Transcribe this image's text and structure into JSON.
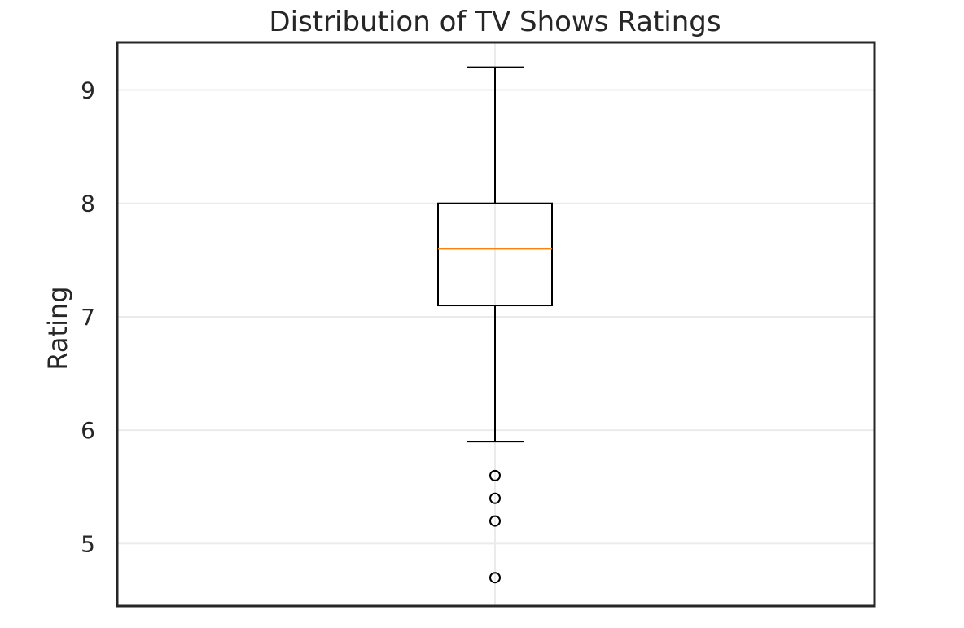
{
  "chart_data": {
    "type": "box",
    "title": "Distribution of TV Shows Ratings",
    "xlabel": "",
    "ylabel": "Rating",
    "ylim": [
      4.45,
      9.42
    ],
    "yticks": [
      5,
      6,
      7,
      8,
      9
    ],
    "ytick_labels": [
      "5",
      "6",
      "7",
      "8",
      "9"
    ],
    "grid": true,
    "box": {
      "whisker_low": 5.9,
      "q1": 7.1,
      "median": 7.6,
      "q3": 8.0,
      "whisker_high": 9.2,
      "outliers": [
        5.6,
        5.4,
        5.2,
        4.7
      ]
    },
    "colors": {
      "median": "#ff7f0e",
      "box": "#000000",
      "grid": "#ebebeb",
      "frame": "#262626"
    }
  }
}
